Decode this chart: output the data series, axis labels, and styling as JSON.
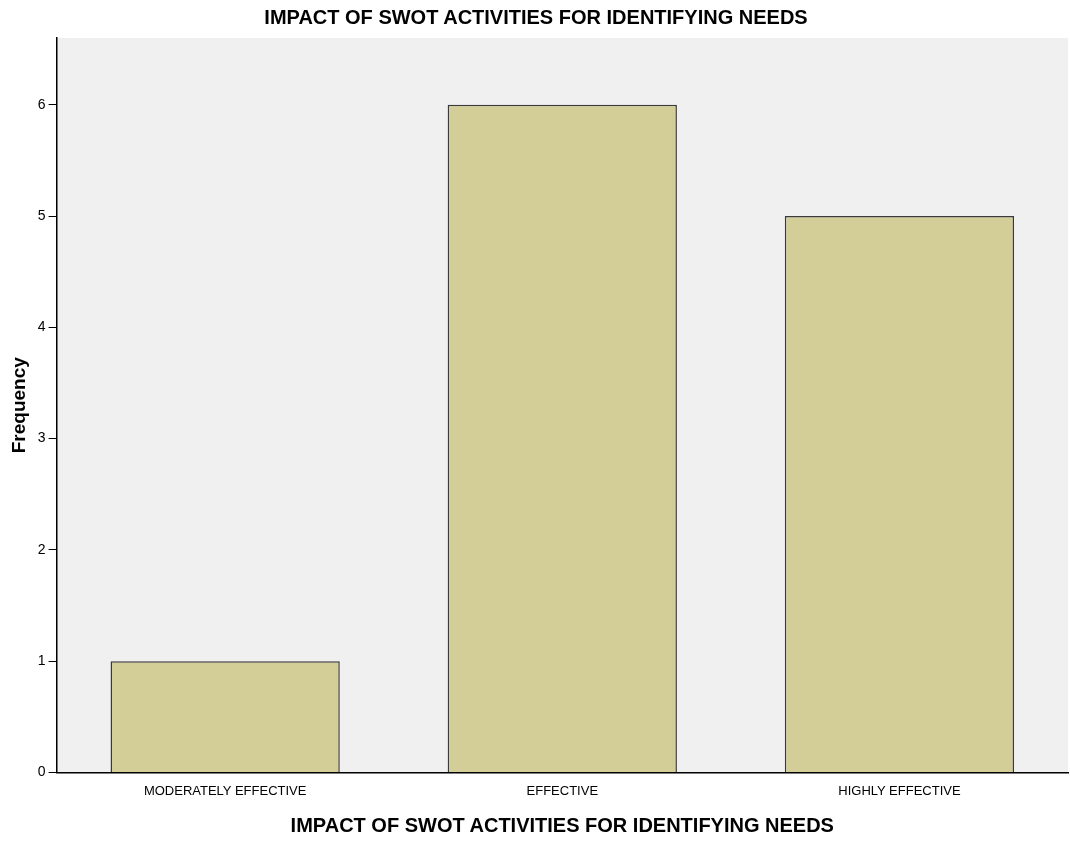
{
  "chart_data": {
    "type": "bar",
    "title": "IMPACT OF SWOT ACTIVITIES FOR IDENTIFYING NEEDS",
    "xlabel": "IMPACT OF SWOT ACTIVITIES FOR IDENTIFYING NEEDS",
    "ylabel": "Frequency",
    "categories": [
      "MODERATELY EFFECTIVE",
      "EFFECTIVE",
      "HIGHLY EFFECTIVE"
    ],
    "values": [
      1,
      6,
      5
    ],
    "color": "#d3ce98",
    "ylim": [
      0,
      6.6
    ],
    "yticks": [
      0,
      1,
      2,
      3,
      4,
      5,
      6
    ],
    "grid": false,
    "legend": false
  }
}
